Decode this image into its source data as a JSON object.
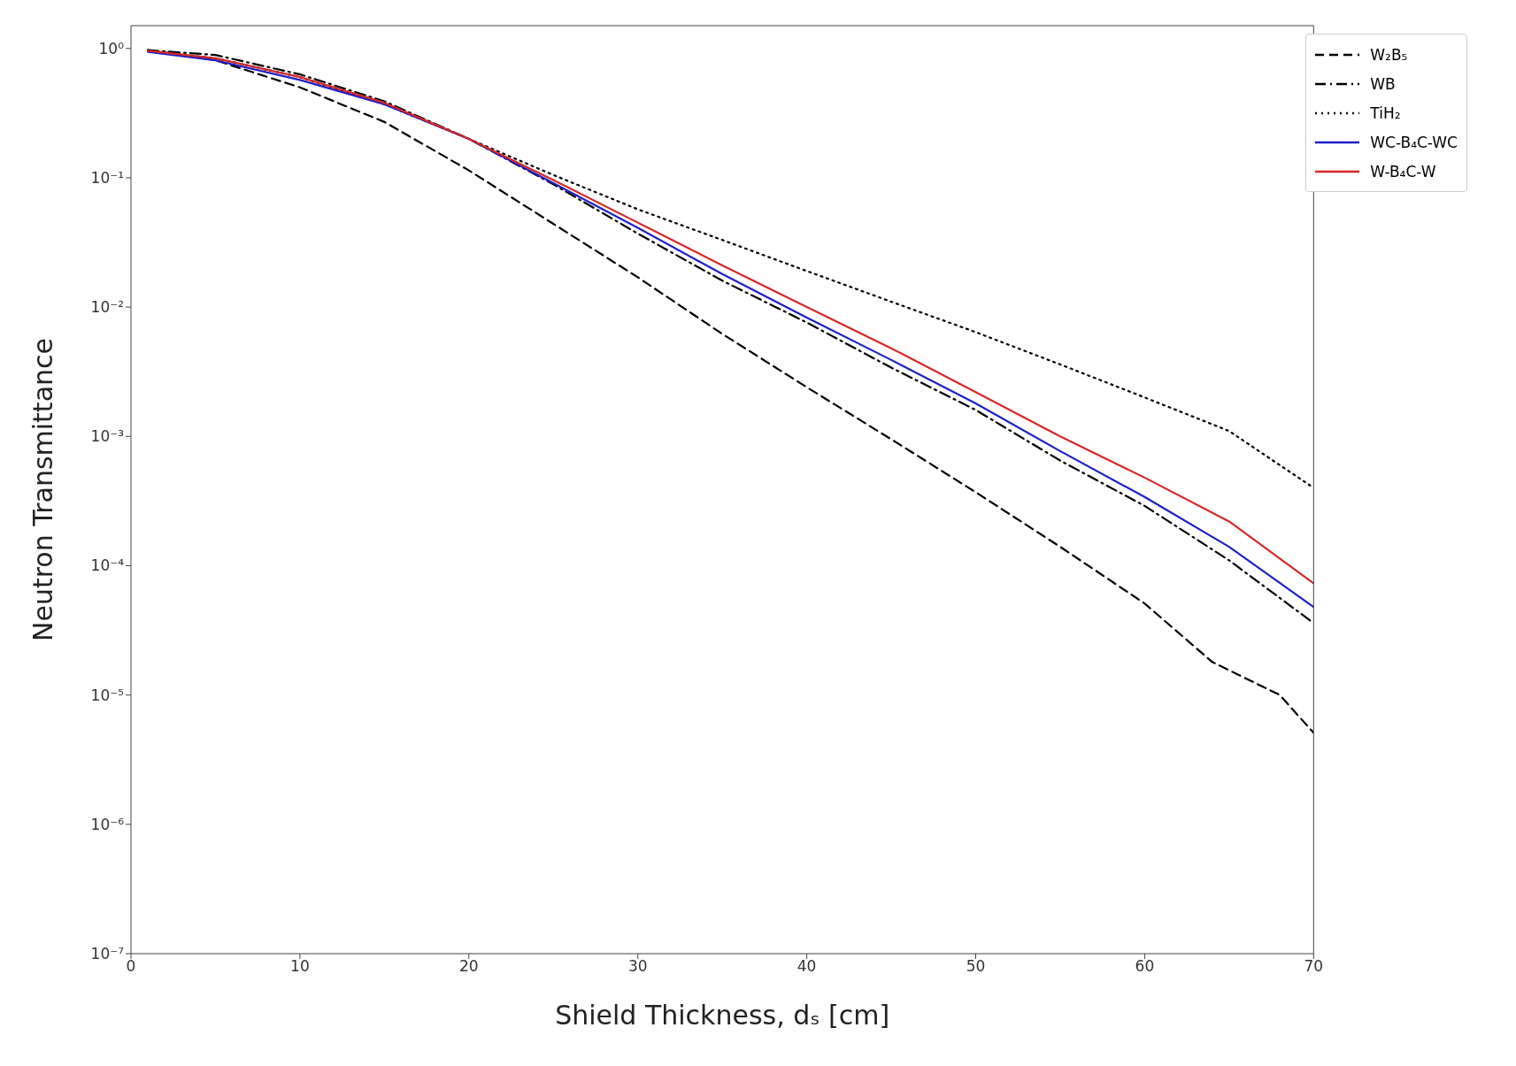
{
  "chart_data": {
    "type": "line",
    "xlabel": "Shield Thickness, dₛ [cm]",
    "ylabel": "Neutron Transmittance",
    "log": "y",
    "legend": "top right",
    "marker": "none",
    "x": [
      1,
      5,
      10,
      15,
      20,
      25,
      30,
      35,
      40,
      45,
      50,
      55,
      60,
      64,
      65,
      68,
      70
    ],
    "xlim": [
      0,
      70
    ],
    "xticks": [
      0,
      10,
      20,
      30,
      40,
      50,
      60,
      70
    ],
    "ylim": [
      1e-07,
      1.5
    ],
    "yticks": [
      {
        "value": 1e-07,
        "label": "10⁻⁷"
      },
      {
        "value": 1e-06,
        "label": "10⁻⁶"
      },
      {
        "value": 1e-05,
        "label": "10⁻⁵"
      },
      {
        "value": 0.0001,
        "label": "10⁻⁴"
      },
      {
        "value": 0.001,
        "label": "10⁻³"
      },
      {
        "value": 0.01,
        "label": "10⁻²"
      },
      {
        "value": 0.1,
        "label": "10⁻¹"
      },
      {
        "value": 1,
        "label": "10⁰"
      }
    ],
    "series": [
      {
        "name": "W₂B₅",
        "color": "#000000",
        "line_style": "dashed",
        "values": [
          0.97,
          0.81,
          0.5,
          0.27,
          0.114,
          0.044,
          0.017,
          0.0062,
          0.0024,
          0.00095,
          0.00037,
          0.00014,
          5.1e-05,
          1.8e-05,
          null,
          1e-05,
          5.1e-06
        ]
      },
      {
        "name": "WB",
        "color": "#000000",
        "line_style": "dashdot",
        "values": [
          0.97,
          0.89,
          0.63,
          0.39,
          0.2,
          0.089,
          0.037,
          0.016,
          0.0076,
          0.0034,
          0.0016,
          0.00065,
          0.00029,
          null,
          0.00011,
          null,
          3.6e-05
        ]
      },
      {
        "name": "TiH₂",
        "color": "#000000",
        "line_style": "dotted",
        "values": [
          0.96,
          0.84,
          0.6,
          0.37,
          0.2,
          0.105,
          0.057,
          0.033,
          0.019,
          0.011,
          0.0064,
          0.0036,
          0.002,
          null,
          0.0011,
          null,
          0.0004
        ]
      },
      {
        "name": "WC-B₄C-WC",
        "color": "#1f1fc8",
        "line_style": "solid",
        "values": [
          0.94,
          0.81,
          0.57,
          0.37,
          0.2,
          0.091,
          0.041,
          0.018,
          0.0083,
          0.0039,
          0.0018,
          0.00077,
          0.00034,
          null,
          0.00014,
          null,
          4.8e-05
        ]
      },
      {
        "name": "W-B₄C-W",
        "color": "#d62728",
        "line_style": "solid",
        "values": [
          0.96,
          0.84,
          0.6,
          0.38,
          0.2,
          0.096,
          0.045,
          0.021,
          0.01,
          0.0048,
          0.0022,
          0.001,
          0.00048,
          null,
          0.00022,
          null,
          7.3e-05
        ]
      }
    ]
  }
}
